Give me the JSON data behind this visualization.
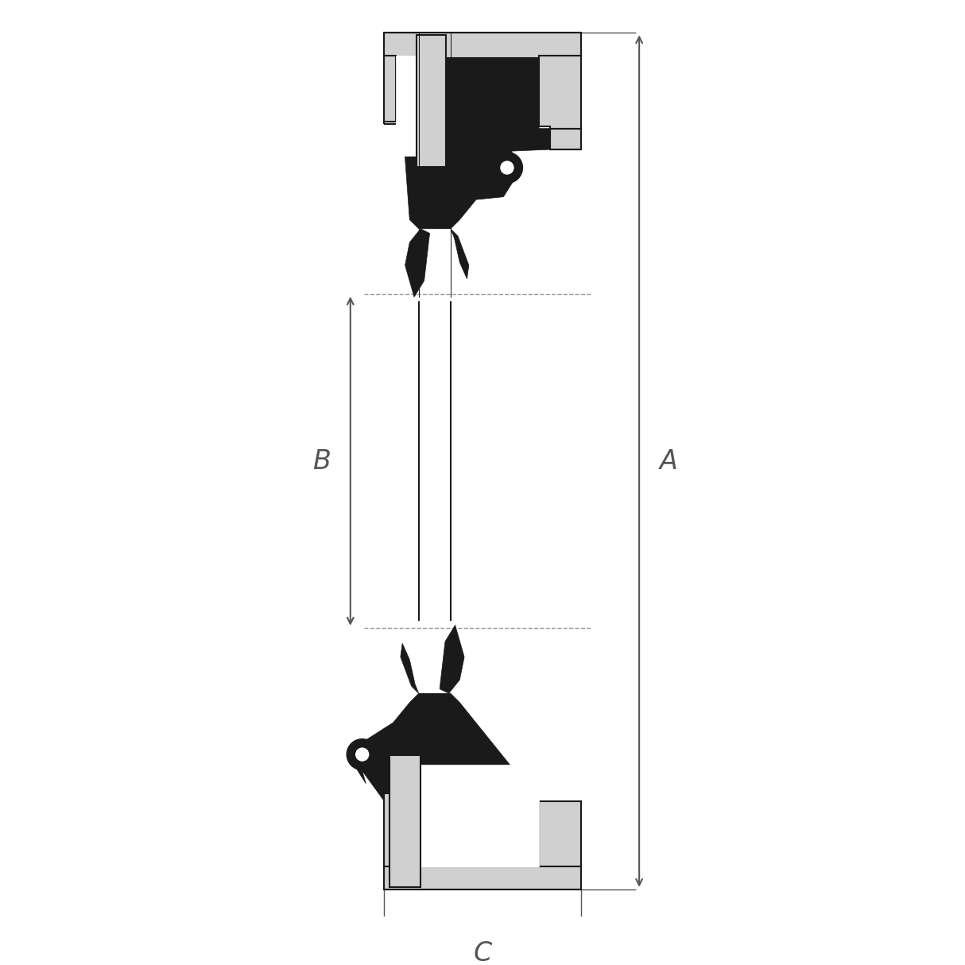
{
  "bg_color": "#ffffff",
  "fill_black": "#1a1a1a",
  "fill_gray": "#d0d0d0",
  "fill_white": "#ffffff",
  "dim_line_color": "#555555",
  "dashed_color": "#999999",
  "canvas_xlim": [
    0,
    10
  ],
  "canvas_ylim": [
    0,
    10
  ],
  "label_A": "A",
  "label_B": "B",
  "label_C": "C",
  "label_fontsize": 24
}
